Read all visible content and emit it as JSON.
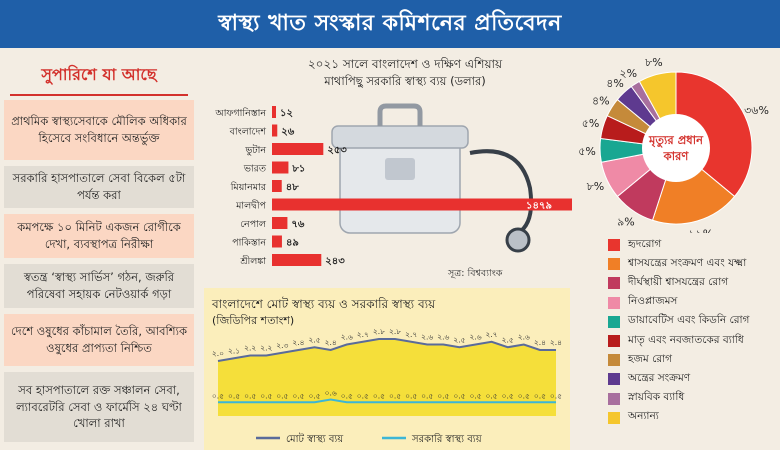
{
  "header": {
    "title": "স্বাস্থ্য খাত সংস্কার কমিশনের প্রতিবেদন"
  },
  "recommendations": {
    "title": "সুপারিশে যা আছে",
    "items": [
      {
        "text": "প্রাথমিক স্বাস্থ্যসেবাকে মৌলিক অধিকার হিসেবে সংবিধানে অন্তর্ভুক্ত"
      },
      {
        "text": "সরকারি হাসপাতালে সেবা বিকেল ৫টা পর্যন্ত করা"
      },
      {
        "text": "কমপক্ষে ১০ মিনিট একজন রোগীকে দেখা, ব্যবস্থাপত্র নিরীক্ষা"
      },
      {
        "text": "স্বতন্ত্র ‘স্বাস্থ্য সার্ভিস’ গঠন, জরুরি পরিষেবা সহায়ক নেটওয়ার্ক গড়া"
      },
      {
        "text": "দেশে ওষুধের কাঁচামাল তৈরি, আবশ্যিক ওষুধের প্রাপ্যতা নিশ্চিত"
      },
      {
        "text": "সব হাসপাতালে রক্ত সঞ্চালন সেবা, ল্যাবরেটরি সেবা ও ফার্মেসি ২৪ ঘণ্টা খোলা রাখা"
      }
    ]
  },
  "chart_data": [
    {
      "type": "bar",
      "title": "২০২১ সালে বাংলাদেশ ও দক্ষিণ এশিয়ায়",
      "subtitle": "মাথাপিছু সরকারি স্বাস্থ্য ব্যয় (ডলার)",
      "source": "সূত্র: বিশ্বব্যাংক",
      "categories": [
        "আফগানিস্তান",
        "বাংলাদেশ",
        "ভুটান",
        "ভারত",
        "মিয়ানমার",
        "মালদ্বীপ",
        "নেপাল",
        "পাকিস্তান",
        "শ্রীলঙ্কা"
      ],
      "values": [
        12,
        26,
        253,
        81,
        48,
        1479,
        76,
        49,
        243
      ],
      "value_labels": [
        "১২",
        "২৬",
        "২৫৩",
        "৮১",
        "৪৮",
        "১৪৭৯",
        "৭৬",
        "৪৯",
        "২৪৩"
      ],
      "bar_color": "#e8312f"
    },
    {
      "type": "line",
      "title": "বাংলাদেশে মোট স্বাস্থ্য ব্যয় ও সরকারি স্বাস্থ্য ব্যয়",
      "subtitle": "(জিডিপির শতাংশ)",
      "x": [
        2000,
        2001,
        2002,
        2003,
        2004,
        2005,
        2006,
        2007,
        2008,
        2009,
        2010,
        2011,
        2012,
        2013,
        2014,
        2015,
        2016,
        2017,
        2018,
        2019,
        2020,
        2021
      ],
      "series": [
        {
          "name": "মোট স্বাস্থ্য ব্যয়",
          "color": "#5a6b9a",
          "fill": "#f5df3a",
          "values": [
            2.0,
            2.1,
            2.2,
            2.2,
            2.3,
            2.4,
            2.5,
            2.4,
            2.6,
            2.7,
            2.8,
            2.8,
            2.7,
            2.6,
            2.6,
            2.5,
            2.6,
            2.7,
            2.5,
            2.6,
            2.4,
            2.4
          ],
          "labels": [
            "২.০",
            "২.১",
            "২.২",
            "২.২",
            "২.৩",
            "২.৪",
            "২.৫",
            "২.৪",
            "২.৬",
            "২.৭",
            "২.৮",
            "২.৮",
            "২.৭",
            "২.৬",
            "২.৬",
            "২.৫",
            "২.৬",
            "২.৭",
            "২.৫",
            "২.৬",
            "২.৪",
            "২.৪"
          ]
        },
        {
          "name": "সরকারি স্বাস্থ্য ব্যয়",
          "color": "#3cb6d6",
          "values": [
            0.5,
            0.5,
            0.5,
            0.5,
            0.5,
            0.5,
            0.5,
            0.6,
            0.5,
            0.5,
            0.5,
            0.5,
            0.5,
            0.5,
            0.5,
            0.5,
            0.5,
            0.5,
            0.5,
            0.5,
            0.5,
            0.5
          ],
          "labels": [
            "০.৫",
            "০.৫",
            "০.৫",
            "০.৫",
            "০.৫",
            "০.৫",
            "০.৫",
            "০.৬",
            "০.৫",
            "০.৫",
            "০.৫",
            "০.৫",
            "০.৫",
            "০.৫",
            "০.৫",
            "০.৫",
            "০.৫",
            "০.৫",
            "০.৫",
            "০.৫",
            "০.৫",
            "০.৫"
          ]
        }
      ],
      "ylim": [
        0,
        3.2
      ],
      "background": "#fbeebb"
    },
    {
      "type": "pie",
      "center_label": "মৃত্যুর প্রধান কারণ",
      "slices": [
        {
          "name": "হৃদরোগ",
          "value": 36,
          "label": "৩৬%",
          "color": "#e8352e"
        },
        {
          "name": "শ্বাসযন্ত্রের সংক্রমণ এবং যক্ষ্মা",
          "value": 19,
          "label": "১৯%",
          "color": "#f07f26"
        },
        {
          "name": "দীর্ঘস্থায়ী শ্বাসযন্ত্রের রোগ",
          "value": 9,
          "label": "৯%",
          "color": "#c03a5e"
        },
        {
          "name": "নিওপ্লাজমস",
          "value": 8,
          "label": "৮%",
          "color": "#ef8aa6"
        },
        {
          "name": "ডায়াবেটিস এবং কিডনি রোগ",
          "value": 5,
          "label": "৫%",
          "color": "#19a792"
        },
        {
          "name": "মাতৃ এবং নবজাতকের ব্যাধি",
          "value": 5,
          "label": "৫%",
          "color": "#b81c1c"
        },
        {
          "name": "হজম রোগ",
          "value": 4,
          "label": "৪%",
          "color": "#c58a3a"
        },
        {
          "name": "অন্ত্রের সংক্রমণ",
          "value": 4,
          "label": "৪%",
          "color": "#5e3a8f"
        },
        {
          "name": "স্নায়বিক ব্যাধি",
          "value": 2,
          "label": "২%",
          "color": "#a86f9e"
        },
        {
          "name": "অন্যান্য",
          "value": 8,
          "label": "৮%",
          "color": "#f5c62c"
        }
      ]
    }
  ]
}
